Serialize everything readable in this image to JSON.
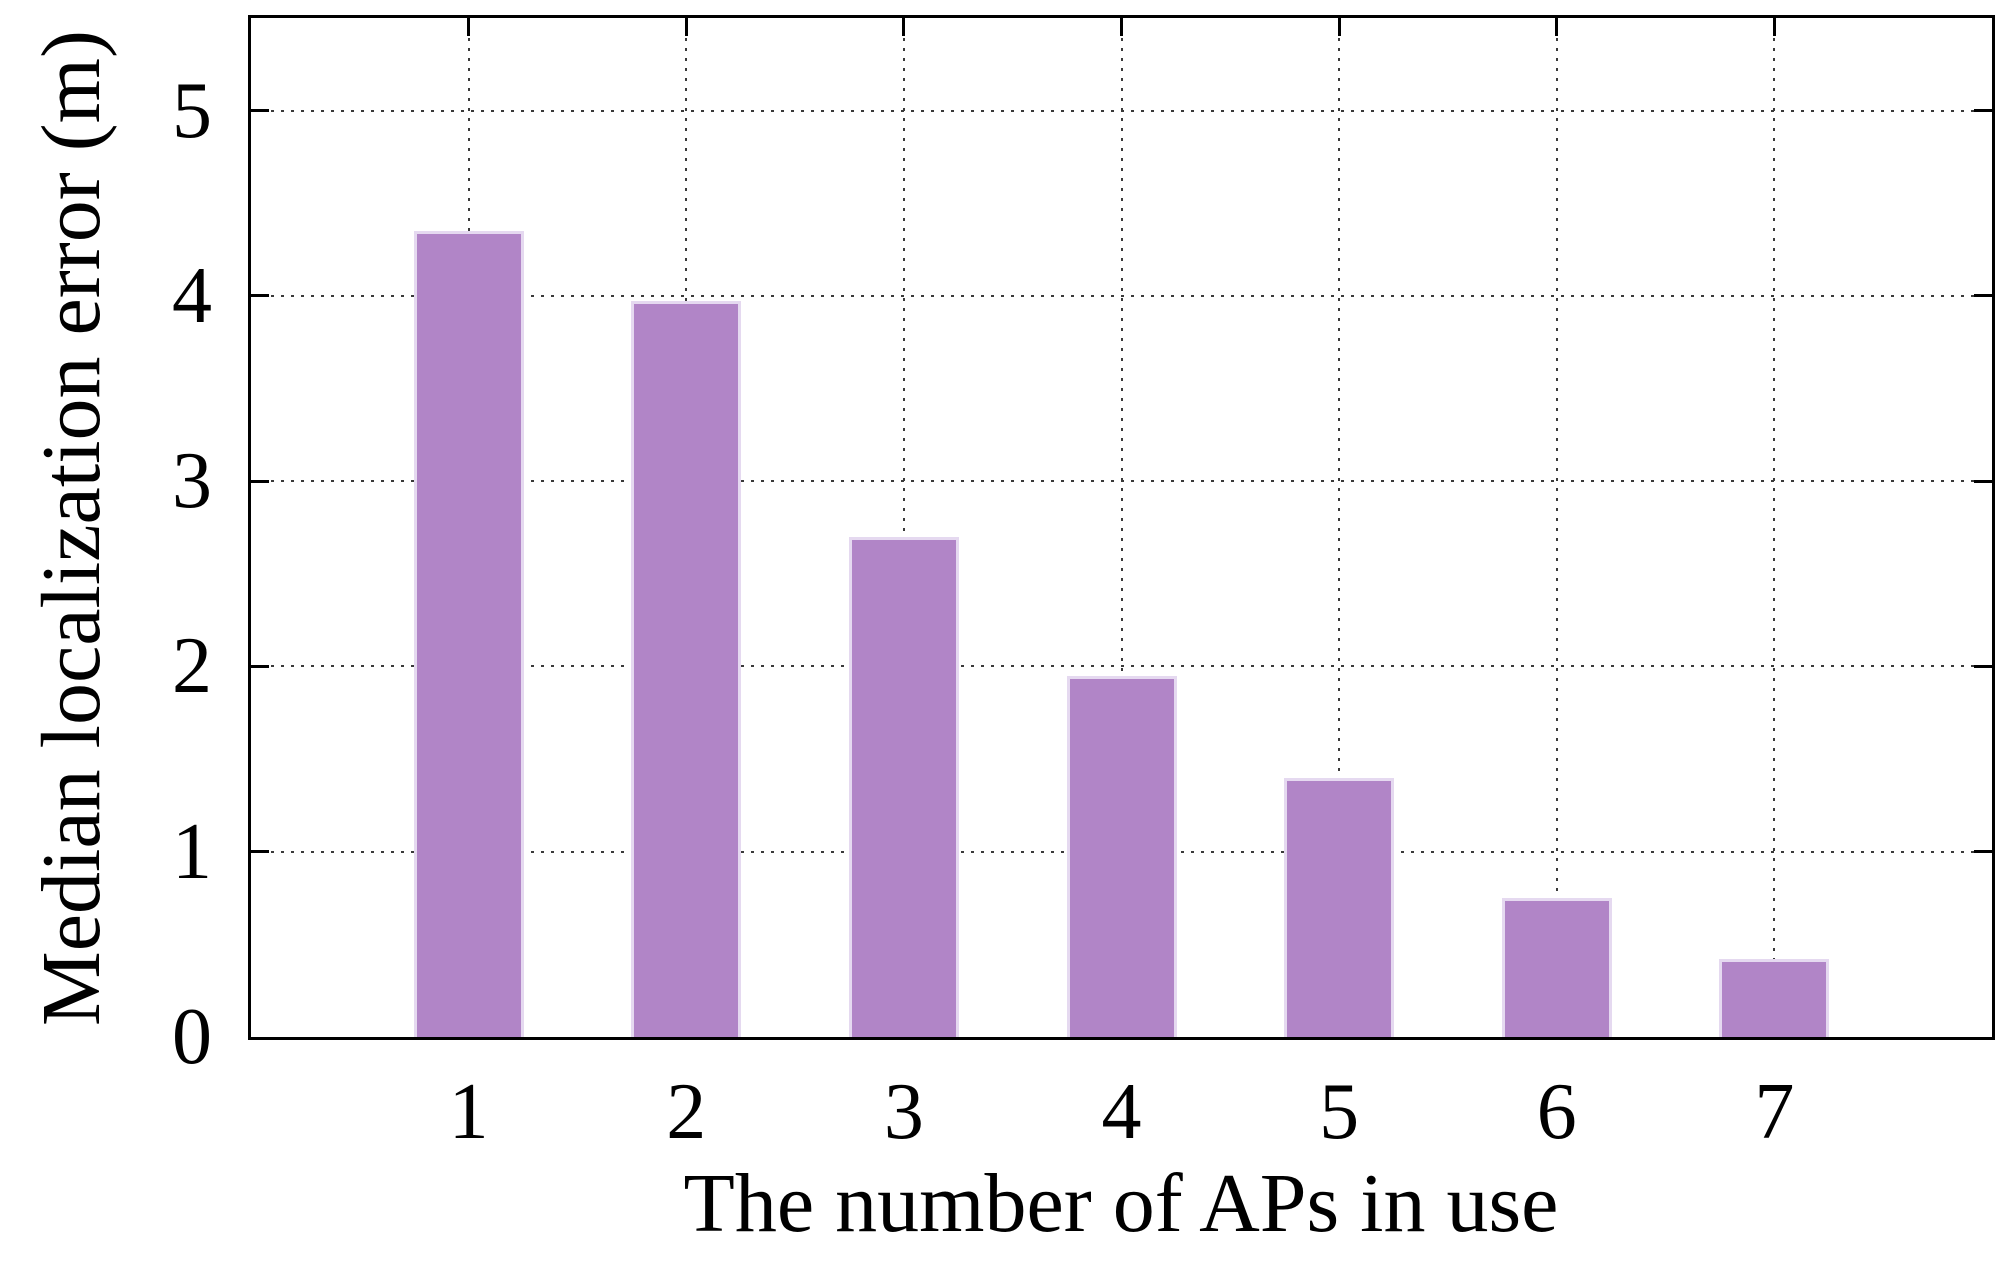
{
  "figure": {
    "background": "#ffffff",
    "axis_color": "#000000",
    "grid_color": "#3a3a3a",
    "text_color": "#000000"
  },
  "chart_data": {
    "type": "bar",
    "title": "",
    "xlabel": "The number of APs in use",
    "ylabel": "Median localization error (m)",
    "categories": [
      "1",
      "2",
      "3",
      "4",
      "5",
      "6",
      "7"
    ],
    "values": [
      4.35,
      3.97,
      2.7,
      1.95,
      1.4,
      0.75,
      0.42
    ],
    "yticks": [
      "0",
      "1",
      "2",
      "3",
      "4",
      "5"
    ],
    "ytick_values": [
      0,
      1,
      2,
      3,
      4,
      5
    ],
    "ylim": [
      0,
      5.5
    ],
    "xlim": [
      0,
      8
    ],
    "grid": true,
    "legend": "none",
    "bar_color": "#b185c7",
    "bar_edge_color": "#e5d9f0"
  }
}
